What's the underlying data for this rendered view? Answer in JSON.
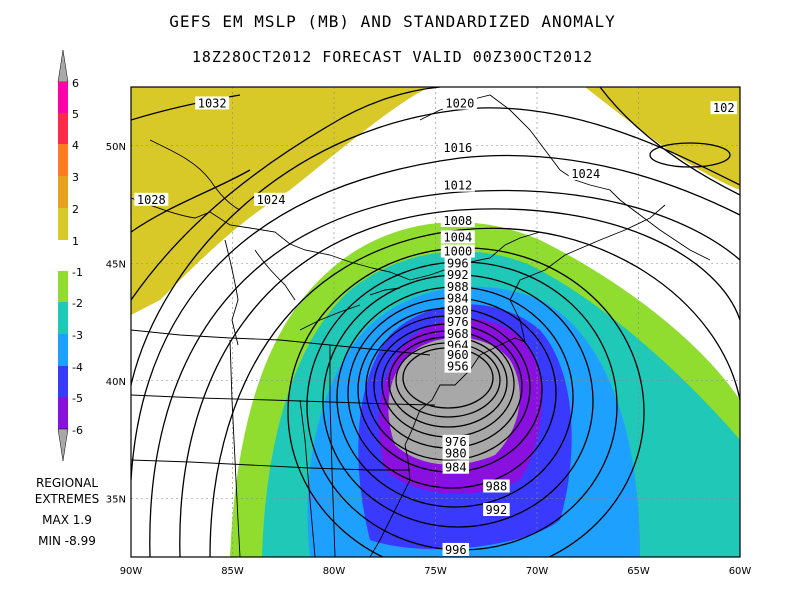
{
  "title": "GEFS EM MSLP (MB) AND STANDARDIZED ANOMALY",
  "subtitle": "18Z28OCT2012 FORECAST   VALID 00Z30OCT2012",
  "colorbar": {
    "labels": [
      "6",
      "5",
      "4",
      "3",
      "2",
      "1",
      "-1",
      "-2",
      "-3",
      "-4",
      "-5",
      "-6"
    ],
    "bins": [
      {
        "from": 5,
        "to": 6,
        "color": "#ff00aa"
      },
      {
        "from": 4,
        "to": 5,
        "color": "#ff2a4a"
      },
      {
        "from": 3,
        "to": 4,
        "color": "#ff7a20"
      },
      {
        "from": 2,
        "to": 3,
        "color": "#e8a020"
      },
      {
        "from": 1,
        "to": 2,
        "color": "#d8c828"
      },
      {
        "from": -1,
        "to": 1,
        "color": "#ffffff"
      },
      {
        "from": -2,
        "to": -1,
        "color": "#90dd30"
      },
      {
        "from": -3,
        "to": -2,
        "color": "#20c8b8"
      },
      {
        "from": -4,
        "to": -3,
        "color": "#1ea0ff"
      },
      {
        "from": -5,
        "to": -4,
        "color": "#3a3aff"
      },
      {
        "from": -6,
        "to": -5,
        "color": "#8a10e0"
      }
    ],
    "extend_color": "#a8a8a8"
  },
  "extremes": {
    "heading_line1": "REGIONAL",
    "heading_line2": "EXTREMES",
    "max_text": "MAX 1.9",
    "min_text": "MIN -8.99"
  },
  "axes": {
    "lon_labels": [
      "90W",
      "85W",
      "80W",
      "75W",
      "70W",
      "65W",
      "60W"
    ],
    "lon_values": [
      -90,
      -85,
      -80,
      -75,
      -70,
      -65,
      -60
    ],
    "lat_labels": [
      "50N",
      "45N",
      "40N",
      "35N"
    ],
    "lat_values": [
      50,
      45,
      40,
      35
    ],
    "lon_range": [
      -90,
      -60
    ],
    "lat_range": [
      32.5,
      52.5
    ]
  },
  "low_center": {
    "lon": -74.0,
    "lat": 40.1
  },
  "contours": [
    {
      "label": "1032",
      "lon": -86.0,
      "lat": 51.8
    },
    {
      "label": "1028",
      "lon": -89.0,
      "lat": 47.7
    },
    {
      "label": "1024",
      "lon": -83.1,
      "lat": 47.7
    },
    {
      "label": "1020",
      "lon": -73.8,
      "lat": 51.8
    },
    {
      "label": "1016",
      "lon": -73.9,
      "lat": 49.9
    },
    {
      "label": "1012",
      "lon": -73.9,
      "lat": 48.3
    },
    {
      "label": "1008",
      "lon": -73.9,
      "lat": 46.8
    },
    {
      "label": "1004",
      "lon": -73.9,
      "lat": 46.1
    },
    {
      "label": "1000",
      "lon": -73.9,
      "lat": 45.5
    },
    {
      "label": "996",
      "lon": -73.9,
      "lat": 45.0
    },
    {
      "label": "992",
      "lon": -73.9,
      "lat": 44.5
    },
    {
      "label": "988",
      "lon": -73.9,
      "lat": 44.0
    },
    {
      "label": "984",
      "lon": -73.9,
      "lat": 43.5
    },
    {
      "label": "980",
      "lon": -73.9,
      "lat": 43.0
    },
    {
      "label": "976",
      "lon": -73.9,
      "lat": 42.5
    },
    {
      "label": "968",
      "lon": -73.9,
      "lat": 42.0
    },
    {
      "label": "964",
      "lon": -73.9,
      "lat": 41.5
    },
    {
      "label": "960",
      "lon": -73.9,
      "lat": 41.1
    },
    {
      "label": "956",
      "lon": -73.9,
      "lat": 40.6
    },
    {
      "label": "976",
      "lon": -74.0,
      "lat": 37.4
    },
    {
      "label": "980",
      "lon": -74.0,
      "lat": 36.9
    },
    {
      "label": "984",
      "lon": -74.0,
      "lat": 36.3
    },
    {
      "label": "988",
      "lon": -72.0,
      "lat": 35.5
    },
    {
      "label": "992",
      "lon": -72.0,
      "lat": 34.5
    },
    {
      "label": "996",
      "lon": -74.0,
      "lat": 32.8
    },
    {
      "label": "1024",
      "lon": -67.6,
      "lat": 48.8
    },
    {
      "label": "102",
      "lon": -60.8,
      "lat": 51.6
    }
  ]
}
